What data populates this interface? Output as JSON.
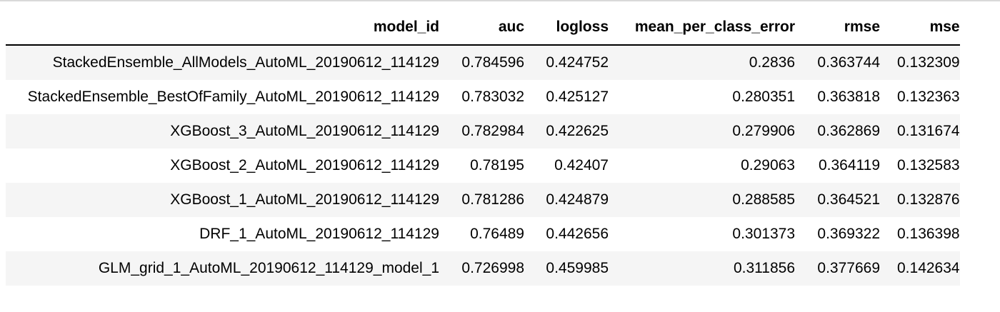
{
  "table": {
    "columns": [
      "model_id",
      "auc",
      "logloss",
      "mean_per_class_error",
      "rmse",
      "mse"
    ],
    "rows": [
      [
        "StackedEnsemble_AllModels_AutoML_20190612_114129",
        "0.784596",
        "0.424752",
        "0.2836",
        "0.363744",
        "0.132309"
      ],
      [
        "StackedEnsemble_BestOfFamily_AutoML_20190612_114129",
        "0.783032",
        "0.425127",
        "0.280351",
        "0.363818",
        "0.132363"
      ],
      [
        "XGBoost_3_AutoML_20190612_114129",
        "0.782984",
        "0.422625",
        "0.279906",
        "0.362869",
        "0.131674"
      ],
      [
        "XGBoost_2_AutoML_20190612_114129",
        "0.78195",
        "0.42407",
        "0.29063",
        "0.364119",
        "0.132583"
      ],
      [
        "XGBoost_1_AutoML_20190612_114129",
        "0.781286",
        "0.424879",
        "0.288585",
        "0.364521",
        "0.132876"
      ],
      [
        "DRF_1_AutoML_20190612_114129",
        "0.76489",
        "0.442656",
        "0.301373",
        "0.369322",
        "0.136398"
      ],
      [
        "GLM_grid_1_AutoML_20190612_114129_model_1",
        "0.726998",
        "0.459985",
        "0.311856",
        "0.377669",
        "0.142634"
      ]
    ]
  }
}
